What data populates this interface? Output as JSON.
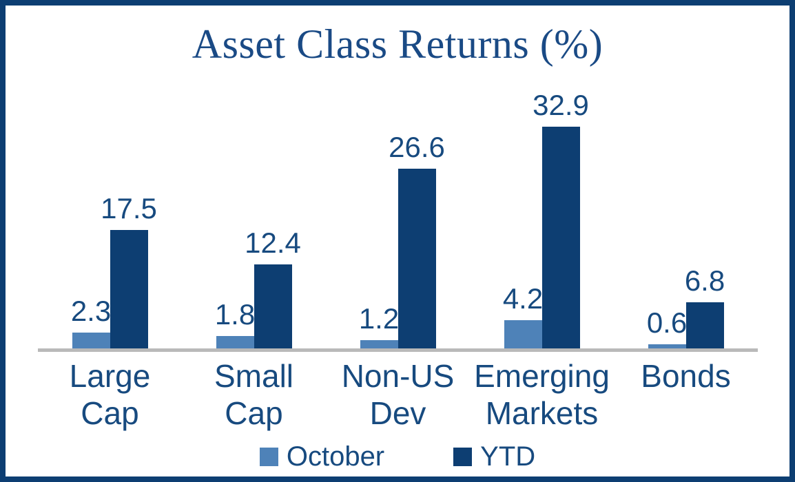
{
  "window": {
    "background_color": "#ffffff",
    "border_color": "#0d3e72"
  },
  "chart_data": {
    "type": "bar",
    "title": "Asset Class Returns (%)",
    "categories": [
      "Large Cap",
      "Small Cap",
      "Non-US Dev",
      "Emerging Markets",
      "Bonds"
    ],
    "category_label_lines": [
      [
        "Large Cap"
      ],
      [
        "Small Cap"
      ],
      [
        "Non-US",
        "Dev"
      ],
      [
        "Emerging",
        "Markets"
      ],
      [
        "Bonds"
      ]
    ],
    "series": [
      {
        "name": "October",
        "color": "#4e82b8",
        "values": [
          2.3,
          1.8,
          1.2,
          4.2,
          0.6
        ]
      },
      {
        "name": "YTD",
        "color": "#0d3e72",
        "values": [
          17.5,
          12.4,
          26.6,
          32.9,
          6.8
        ]
      }
    ],
    "value_labels_shown": true,
    "value_label_format": "one-decimal",
    "xlabel": "",
    "ylabel": "",
    "ylim": [
      0,
      33
    ],
    "grid": false,
    "y_axis_shown": false,
    "baseline_color": "#b9b9b9",
    "text_color": "#174a7f",
    "title_color": "#1a4a85",
    "legend_position": "bottom",
    "legend_labels": [
      "October",
      "YTD"
    ]
  }
}
